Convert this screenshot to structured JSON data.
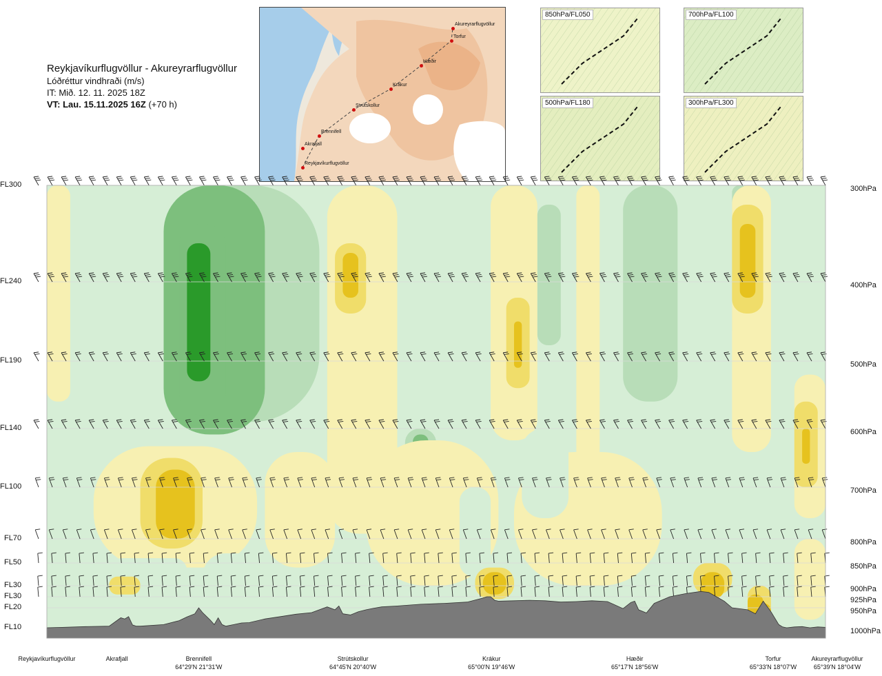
{
  "header": {
    "title": "Reykjavíkurflugvöllur - Akureyrarflugvöllur",
    "subtitle": "Lóðréttur vindhraði (m/s)",
    "init_time": "IT: Mið. 12. 11. 2025 18Z",
    "valid_time": "VT: Lau. 15.11.2025 16Z",
    "lead": "(+70 h)"
  },
  "route_map": {
    "points": [
      {
        "name": "Akureyrarflugvöllur"
      },
      {
        "name": "Torfur"
      },
      {
        "name": "Hæðir"
      },
      {
        "name": "Krákur"
      },
      {
        "name": "Strútskollur"
      },
      {
        "name": "Brennifell"
      },
      {
        "name": "Akrafjall"
      },
      {
        "name": "Reykjavíkurflugvöllur"
      }
    ]
  },
  "insets": [
    {
      "label": "850hPa/FL050"
    },
    {
      "label": "700hPa/FL100"
    },
    {
      "label": "500hPa/FL180"
    },
    {
      "label": "300hPa/FL300"
    }
  ],
  "colors": {
    "strong_up": "#2a9a2a",
    "mid_up": "#7dbf7d",
    "light_up": "#b8ddb8",
    "weak_up": "#d6eed6",
    "neutral": "#f4fbe8",
    "weak_down": "#f7f0b2",
    "mid_down": "#f0dd6a",
    "strong_down": "#e6c21e",
    "terrain": "#7a7a7a"
  },
  "chart_data": {
    "type": "heatmap",
    "variable": "Lóðréttur vindhraði (m/s)",
    "left_axis_levels": [
      "FL300",
      "FL240",
      "FL190",
      "FL140",
      "FL100",
      "FL70",
      "FL50",
      "FL30",
      "FL30",
      "FL20",
      "FL10"
    ],
    "right_axis_levels": [
      "300hPa",
      "400hPa",
      "500hPa",
      "600hPa",
      "700hPa",
      "800hPa",
      "850hPa",
      "900hPa",
      "925hPa",
      "950hPa",
      "1000hPa"
    ],
    "pressure_hPa": [
      300,
      400,
      500,
      600,
      700,
      800,
      850,
      900,
      925,
      950,
      1000
    ],
    "waypoints": [
      {
        "name": "Reykjavíkurflugvöllur",
        "coord": "",
        "dist": 0
      },
      {
        "name": "Akrafjall",
        "coord": "",
        "dist": 0.09
      },
      {
        "name": "Brennifell",
        "coord": "64°29'N 21°31'W",
        "dist": 0.195
      },
      {
        "name": "Strútskollur",
        "coord": "64°45'N 20°40'W",
        "dist": 0.393
      },
      {
        "name": "Krákur",
        "coord": "65°00'N 19°46'W",
        "dist": 0.571
      },
      {
        "name": "Hæðir",
        "coord": "65°17'N 18°56'W",
        "dist": 0.755
      },
      {
        "name": "Torfur",
        "coord": "65°33'N 18°07'W",
        "dist": 0.953
      },
      {
        "name": "Akureyrarflugvöllur",
        "coord": "65°39'N 18°04'W",
        "dist": 1.0
      }
    ],
    "terrain_profile": {
      "dist": [
        0,
        0.02,
        0.05,
        0.08,
        0.095,
        0.1,
        0.105,
        0.11,
        0.115,
        0.12,
        0.15,
        0.17,
        0.18,
        0.19,
        0.195,
        0.2,
        0.21,
        0.215,
        0.22,
        0.225,
        0.23,
        0.24,
        0.25,
        0.26,
        0.28,
        0.3,
        0.32,
        0.34,
        0.36,
        0.37,
        0.375,
        0.38,
        0.39,
        0.4,
        0.41,
        0.42,
        0.43,
        0.45,
        0.48,
        0.51,
        0.54,
        0.56,
        0.565,
        0.57,
        0.575,
        0.58,
        0.6,
        0.62,
        0.64,
        0.66,
        0.68,
        0.7,
        0.72,
        0.74,
        0.75,
        0.755,
        0.76,
        0.77,
        0.78,
        0.8,
        0.82,
        0.84,
        0.85,
        0.86,
        0.87,
        0.88,
        0.9,
        0.91,
        0.92,
        0.93,
        0.94,
        0.945,
        0.95,
        0.96,
        0.97,
        0.98,
        0.99,
        1.0
      ],
      "pressure_hPa": [
        1000,
        999,
        997,
        996,
        975,
        978,
        972,
        993,
        996,
        996,
        992,
        982,
        973,
        965,
        950,
        962,
        981,
        992,
        975,
        992,
        996,
        992,
        988,
        987,
        978,
        972,
        966,
        962,
        948,
        955,
        946,
        965,
        968,
        960,
        955,
        951,
        948,
        946,
        942,
        940,
        937,
        928,
        925,
        925,
        933,
        935,
        934,
        933,
        934,
        937,
        936,
        934,
        936,
        952,
        938,
        935,
        955,
        963,
        940,
        925,
        918,
        913,
        915,
        925,
        935,
        950,
        955,
        965,
        935,
        960,
        992,
        998,
        1000,
        998,
        997,
        1000,
        998,
        999
      ]
    },
    "cells": [
      {
        "x0": 0.0,
        "x1": 0.03,
        "p0": 300,
        "p1": 560,
        "v": -1
      },
      {
        "x0": 0.05,
        "x1": 0.12,
        "p0": 380,
        "p1": 640,
        "v": 1
      },
      {
        "x0": 0.11,
        "x1": 0.14,
        "p0": 300,
        "p1": 560,
        "v": 1
      },
      {
        "x0": 0.13,
        "x1": 0.42,
        "p0": 300,
        "p1": 590,
        "v": 1
      },
      {
        "x0": 0.16,
        "x1": 0.35,
        "p0": 300,
        "p1": 590,
        "v": 2
      },
      {
        "x0": 0.15,
        "x1": 0.28,
        "p0": 300,
        "p1": 610,
        "v": 3
      },
      {
        "x0": 0.17,
        "x1": 0.23,
        "p0": 340,
        "p1": 580,
        "v": 4
      },
      {
        "x0": 0.18,
        "x1": 0.21,
        "p0": 360,
        "p1": 530,
        "v": 5
      },
      {
        "x0": 0.36,
        "x1": 0.41,
        "p0": 490,
        "p1": 660,
        "v": 1
      },
      {
        "x0": 0.36,
        "x1": 0.39,
        "p0": 560,
        "p1": 640,
        "v": 2
      },
      {
        "x0": 0.36,
        "x1": 0.45,
        "p0": 300,
        "p1": 790,
        "v": -1
      },
      {
        "x0": 0.37,
        "x1": 0.41,
        "p0": 360,
        "p1": 440,
        "v": -2
      },
      {
        "x0": 0.38,
        "x1": 0.4,
        "p0": 370,
        "p1": 420,
        "v": -3
      },
      {
        "x0": 0.45,
        "x1": 0.51,
        "p0": 560,
        "p1": 760,
        "v": 1
      },
      {
        "x0": 0.46,
        "x1": 0.5,
        "p0": 600,
        "p1": 720,
        "v": 2
      },
      {
        "x0": 0.47,
        "x1": 0.49,
        "p0": 610,
        "p1": 700,
        "v": 3
      },
      {
        "x0": 0.46,
        "x1": 0.56,
        "p0": 300,
        "p1": 570,
        "v": 1
      },
      {
        "x0": 0.57,
        "x1": 0.63,
        "p0": 300,
        "p1": 620,
        "v": -1
      },
      {
        "x0": 0.59,
        "x1": 0.62,
        "p0": 420,
        "p1": 540,
        "v": -2
      },
      {
        "x0": 0.6,
        "x1": 0.61,
        "p0": 450,
        "p1": 510,
        "v": -3
      },
      {
        "x0": 0.63,
        "x1": 0.67,
        "p0": 310,
        "p1": 600,
        "v": 1
      },
      {
        "x0": 0.63,
        "x1": 0.66,
        "p0": 320,
        "p1": 480,
        "v": 2
      },
      {
        "x0": 0.68,
        "x1": 0.71,
        "p0": 300,
        "p1": 720,
        "v": -1
      },
      {
        "x0": 0.73,
        "x1": 0.83,
        "p0": 300,
        "p1": 610,
        "v": 1
      },
      {
        "x0": 0.74,
        "x1": 0.81,
        "p0": 300,
        "p1": 560,
        "v": 2
      },
      {
        "x0": 0.83,
        "x1": 0.86,
        "p0": 300,
        "p1": 720,
        "v": 1
      },
      {
        "x0": 0.88,
        "x1": 0.9,
        "p0": 300,
        "p1": 470,
        "v": 2
      },
      {
        "x0": 0.88,
        "x1": 0.93,
        "p0": 300,
        "p1": 640,
        "v": -1
      },
      {
        "x0": 0.88,
        "x1": 0.92,
        "p0": 320,
        "p1": 440,
        "v": -2
      },
      {
        "x0": 0.89,
        "x1": 0.91,
        "p0": 340,
        "p1": 420,
        "v": -3
      },
      {
        "x0": 0.94,
        "x1": 0.97,
        "p0": 300,
        "p1": 440,
        "v": 1
      },
      {
        "x0": 0.96,
        "x1": 1.0,
        "p0": 520,
        "p1": 760,
        "v": -1
      },
      {
        "x0": 0.96,
        "x1": 0.99,
        "p0": 560,
        "p1": 700,
        "v": -2
      },
      {
        "x0": 0.97,
        "x1": 0.98,
        "p0": 600,
        "p1": 660,
        "v": -3
      },
      {
        "x0": 0.06,
        "x1": 0.27,
        "p0": 630,
        "p1": 860,
        "v": -1
      },
      {
        "x0": 0.12,
        "x1": 0.2,
        "p0": 650,
        "p1": 820,
        "v": -2
      },
      {
        "x0": 0.14,
        "x1": 0.19,
        "p0": 670,
        "p1": 800,
        "v": -3
      },
      {
        "x0": 0.15,
        "x1": 0.18,
        "p0": 690,
        "p1": 790,
        "v": -4
      },
      {
        "x0": 0.28,
        "x1": 0.37,
        "p0": 640,
        "p1": 860,
        "v": -1
      },
      {
        "x0": 0.08,
        "x1": 0.18,
        "p0": 840,
        "p1": 900,
        "v": 1
      },
      {
        "x0": 0.08,
        "x1": 0.12,
        "p0": 880,
        "p1": 920,
        "v": -2
      },
      {
        "x0": 0.2,
        "x1": 0.3,
        "p0": 830,
        "p1": 940,
        "v": 1
      },
      {
        "x0": 0.41,
        "x1": 0.58,
        "p0": 620,
        "p1": 900,
        "v": -1
      },
      {
        "x0": 0.53,
        "x1": 0.57,
        "p0": 700,
        "p1": 880,
        "v": 1
      },
      {
        "x0": 0.55,
        "x1": 0.6,
        "p0": 860,
        "p1": 930,
        "v": -2
      },
      {
        "x0": 0.56,
        "x1": 0.59,
        "p0": 870,
        "p1": 920,
        "v": -3
      },
      {
        "x0": 0.57,
        "x1": 0.58,
        "p0": 880,
        "p1": 910,
        "v": -4
      },
      {
        "x0": 0.6,
        "x1": 0.79,
        "p0": 640,
        "p1": 900,
        "v": -1
      },
      {
        "x0": 0.61,
        "x1": 0.67,
        "p0": 600,
        "p1": 760,
        "v": 1
      },
      {
        "x0": 0.79,
        "x1": 0.84,
        "p0": 840,
        "p1": 920,
        "v": 1
      },
      {
        "x0": 0.83,
        "x1": 0.88,
        "p0": 850,
        "p1": 920,
        "v": -2
      },
      {
        "x0": 0.84,
        "x1": 0.87,
        "p0": 870,
        "p1": 930,
        "v": -3
      },
      {
        "x0": 0.9,
        "x1": 0.93,
        "p0": 900,
        "p1": 980,
        "v": -2
      },
      {
        "x0": 0.9,
        "x1": 0.92,
        "p0": 920,
        "p1": 985,
        "v": -3
      },
      {
        "x0": 0.91,
        "x1": 0.93,
        "p0": 940,
        "p1": 990,
        "v": -4
      },
      {
        "x0": 0.93,
        "x1": 0.96,
        "p0": 820,
        "p1": 960,
        "v": 1
      },
      {
        "x0": 0.96,
        "x1": 1.0,
        "p0": 800,
        "p1": 980,
        "v": -1
      }
    ],
    "wind_barb_rows_hPa": [
      300,
      400,
      500,
      600,
      700,
      800,
      850,
      900,
      925
    ]
  }
}
